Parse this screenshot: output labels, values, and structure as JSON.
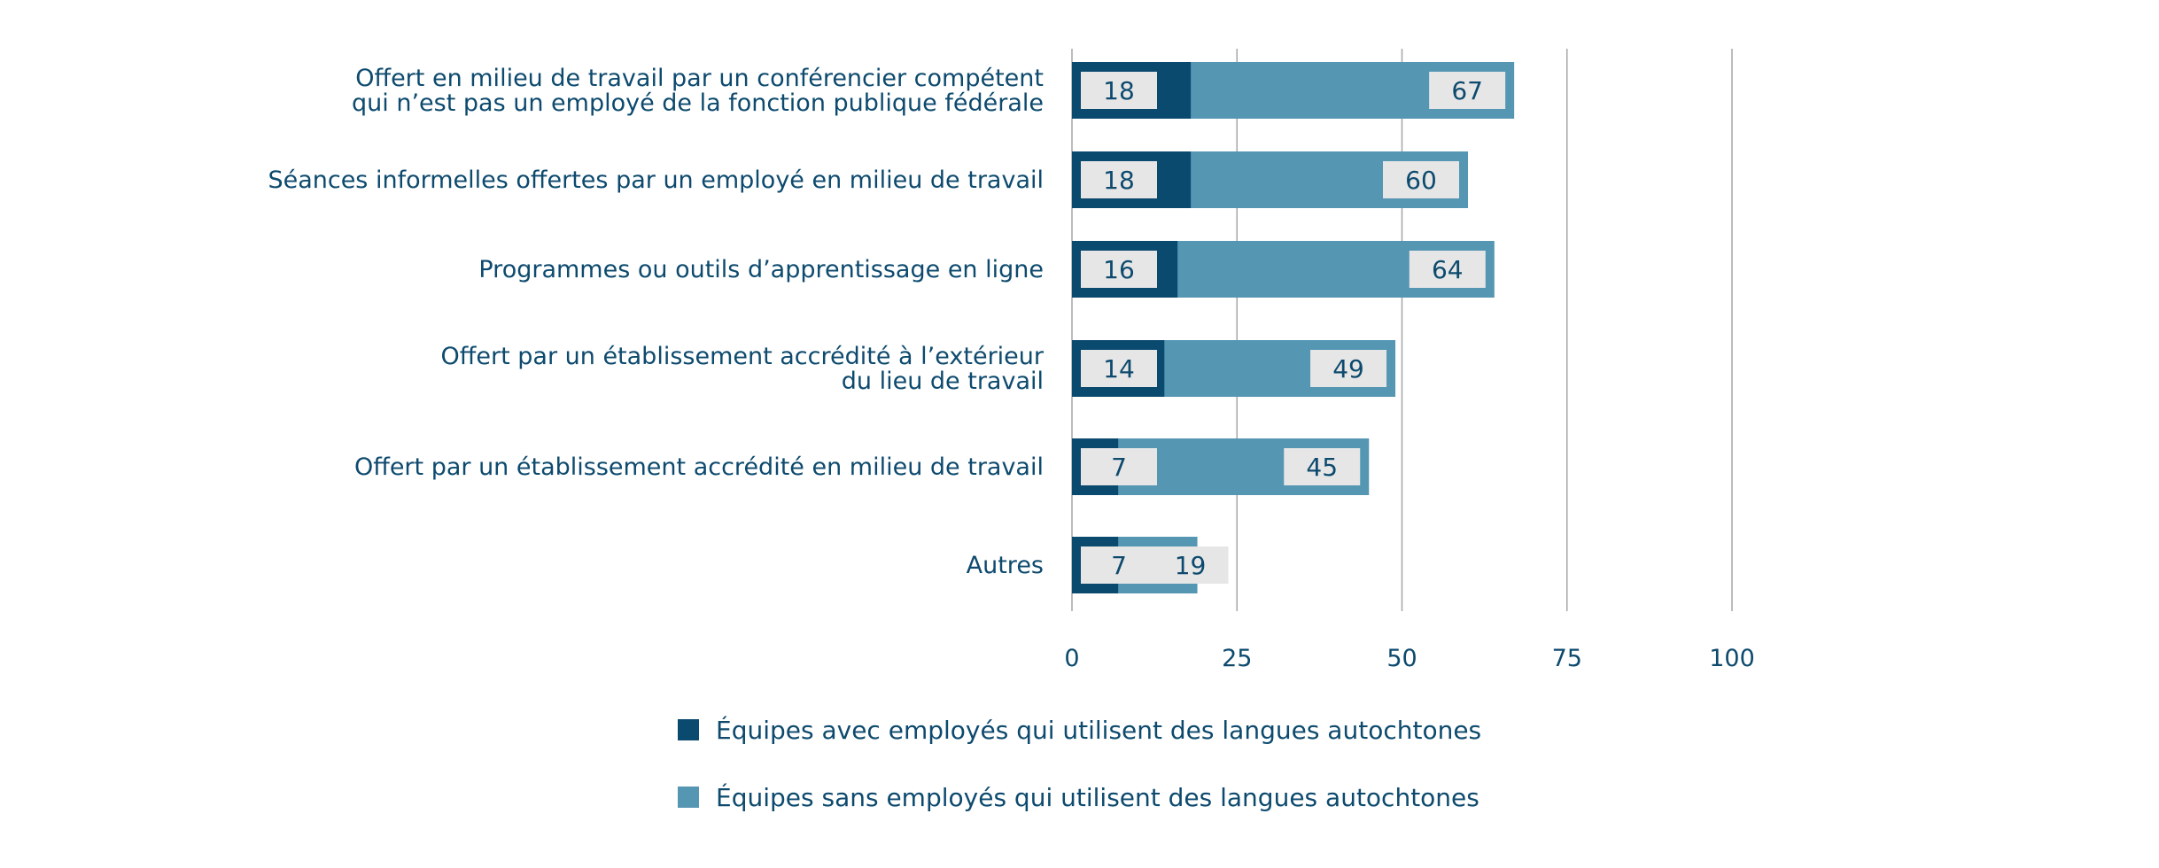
{
  "chart_data": {
    "type": "bar",
    "orientation": "horizontal",
    "categories": [
      [
        "Offert en milieu de travail par un conférencier compétent",
        "qui n’est pas un employé de la fonction publique fédérale"
      ],
      [
        "Séances informelles offertes par un employé en milieu de travail"
      ],
      [
        "Programmes ou outils d’apprentissage en ligne"
      ],
      [
        "Offert par un établissement accrédité à l’extérieur",
        "du lieu de travail"
      ],
      [
        "Offert par un établissement accrédité en milieu de travail"
      ],
      [
        "Autres"
      ]
    ],
    "series": [
      {
        "name": "Équipes avec employés qui utilisent des langues autochtones",
        "color": "#0b4a6f",
        "values": [
          18,
          18,
          16,
          14,
          7,
          7
        ]
      },
      {
        "name": "Équipes sans employés qui utilisent des langues autochtones",
        "color": "#5596b3",
        "values": [
          67,
          60,
          64,
          49,
          45,
          19
        ]
      }
    ],
    "xlim": [
      0,
      100
    ],
    "xticks": [
      "0",
      "25",
      "50",
      "75",
      "100"
    ],
    "grid": true,
    "legend_position": "bottom",
    "label_box_color": "#e6e6e6",
    "text_color": "#0d4a6e"
  }
}
